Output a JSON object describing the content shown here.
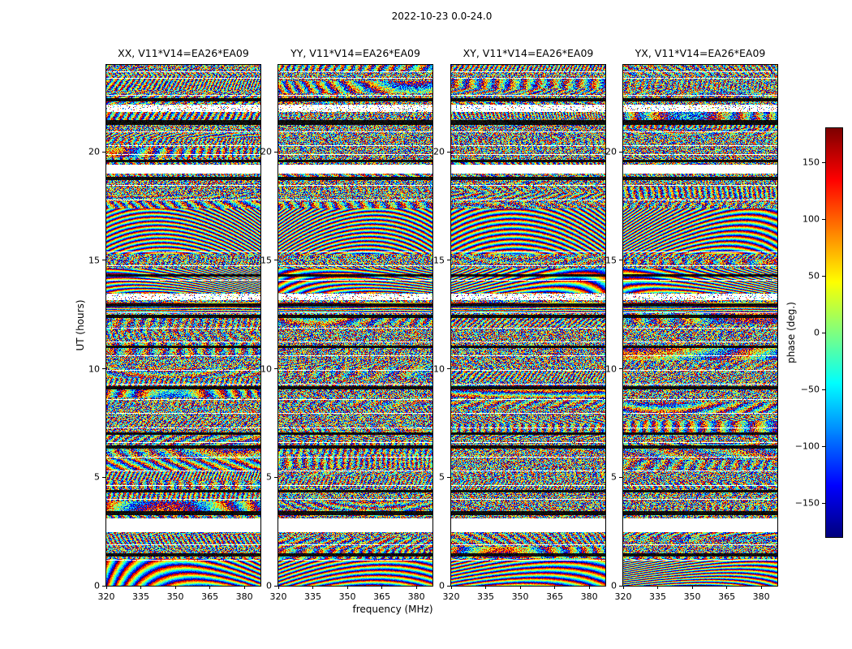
{
  "figure": {
    "title": "2022-10-23 0.0-24.0"
  },
  "chart_data": {
    "type": "heatmap",
    "title": "2022-10-23 0.0-24.0",
    "xlabel": "frequency (MHz)",
    "ylabel": "UT (hours)",
    "xlim": [
      320,
      387
    ],
    "ylim": [
      0,
      24
    ],
    "xticks": [
      320,
      335,
      350,
      365,
      380
    ],
    "yticks": [
      0,
      5,
      10,
      15,
      20
    ],
    "panels": [
      {
        "pol": "XX",
        "title": "XX, V11*V14=EA26*EA09"
      },
      {
        "pol": "YY",
        "title": "YY, V11*V14=EA26*EA09"
      },
      {
        "pol": "XY",
        "title": "XY, V11*V14=EA26*EA09"
      },
      {
        "pol": "YX",
        "title": "YX, V11*V14=EA26*EA09"
      }
    ],
    "colorbar": {
      "label": "phase (deg.)",
      "ticks": [
        150,
        100,
        50,
        0,
        -50,
        -100,
        -150
      ],
      "range": [
        -180,
        180
      ],
      "colormap": "jet"
    },
    "values_description": "per-pixel interferometric visibility phase (wrapped, degrees); noisy fringes regenerated procedurally from seed",
    "noise_seed": 20221023,
    "white_gaps_ut": [
      [
        2.45,
        3.1
      ],
      [
        19.0,
        19.4
      ]
    ],
    "dotted_gaps_ut": [
      [
        13.15,
        13.45
      ],
      [
        21.85,
        22.15
      ]
    ],
    "black_bands_ut": [
      [
        1.35,
        1.5
      ],
      [
        3.25,
        3.45
      ],
      [
        4.3,
        4.4
      ],
      [
        6.3,
        6.45
      ],
      [
        6.95,
        7.05
      ],
      [
        9.05,
        9.2
      ],
      [
        10.95,
        11.05
      ],
      [
        12.35,
        12.5
      ],
      [
        12.85,
        13.0
      ],
      [
        14.25,
        14.35
      ],
      [
        18.7,
        18.85
      ],
      [
        19.5,
        19.62
      ],
      [
        21.25,
        21.45
      ],
      [
        22.3,
        22.45
      ]
    ],
    "thin_white_lines_ut": [
      1.2,
      1.9,
      4.0,
      4.65,
      5.3,
      5.95,
      6.6,
      7.3,
      7.95,
      8.6,
      9.3,
      9.95,
      10.6,
      11.25,
      11.9,
      12.6,
      14.1,
      14.75,
      15.4,
      17.8,
      18.45,
      19.9,
      20.3,
      20.95,
      22.6,
      23.4,
      23.7
    ],
    "smooth_regions_ut": [
      [
        0.0,
        1.25
      ],
      [
        13.5,
        14.6
      ],
      [
        15.3,
        17.4
      ]
    ],
    "streak_region_ut": [
      12.55,
      13.05
    ],
    "colors": {
      "background": "#ffffff",
      "axes": "#000000",
      "text": "#000000"
    }
  }
}
